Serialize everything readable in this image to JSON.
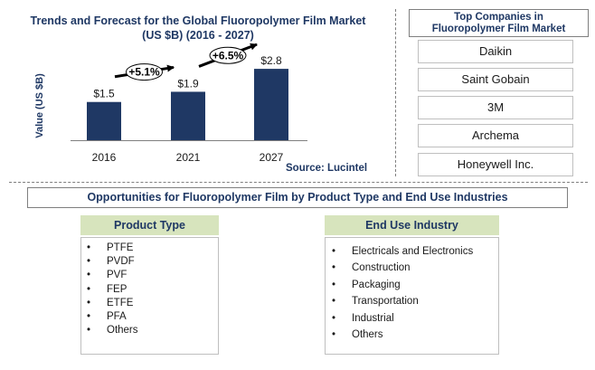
{
  "chart_data": {
    "type": "bar",
    "title": "Trends and Forecast for the Global Fluoropolymer Film Market",
    "subtitle": "(US $B) (2016 - 2027)",
    "ylabel": "Value (US $B)",
    "categories": [
      "2016",
      "2021",
      "2027"
    ],
    "values": [
      1.5,
      1.9,
      2.8
    ],
    "value_labels": [
      "$1.5",
      "$1.9",
      "$2.8"
    ],
    "ylim": [
      0,
      3.3
    ],
    "bar_color": "#1f3864",
    "growth_annotations": [
      {
        "label": "+5.1%",
        "from": "2016",
        "to": "2021"
      },
      {
        "label": "+6.5%",
        "from": "2021",
        "to": "2027"
      }
    ],
    "grid": false
  },
  "source": "Source: Lucintel",
  "companies": {
    "header_line1": "Top Companies in",
    "header_line2": "Fluoropolymer Film Market",
    "items": [
      "Daikin",
      "Saint Gobain",
      "3M",
      "Archema",
      "Honeywell Inc."
    ]
  },
  "opportunities": {
    "header": "Opportunities for Fluoropolymer Film by Product Type and End Use Industries",
    "product_type": {
      "header": "Product Type",
      "items": [
        "PTFE",
        "PVDF",
        "PVF",
        "FEP",
        "ETFE",
        "PFA",
        "Others"
      ]
    },
    "end_use": {
      "header": "End Use Industry",
      "items": [
        "Electricals and Electronics",
        "Construction",
        "Packaging",
        "Transportation",
        "Industrial",
        "Others"
      ]
    }
  },
  "colors": {
    "bar": "#1f3864",
    "title": "#1f3864",
    "category_header_bg": "#d7e4bd",
    "arrow": "#000000"
  }
}
